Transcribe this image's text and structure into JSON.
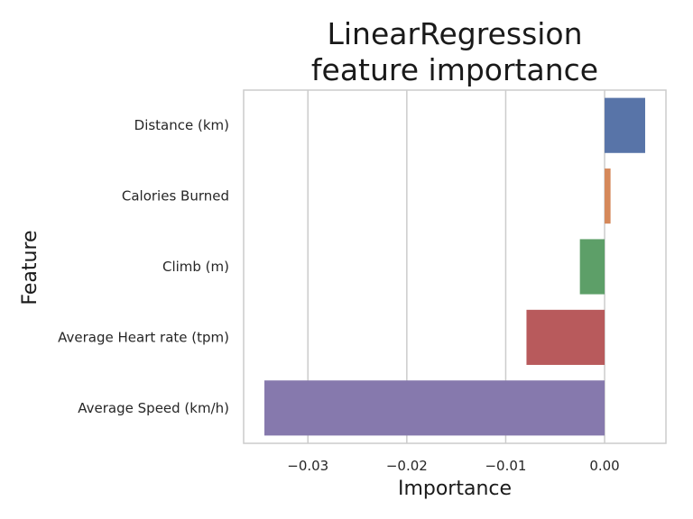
{
  "chart_data": {
    "type": "bar",
    "orientation": "horizontal",
    "title_lines": [
      "LinearRegression",
      "feature importance"
    ],
    "xlabel": "Importance",
    "ylabel": "Feature",
    "xlim": [
      -0.0365,
      0.0062
    ],
    "xticks": [
      -0.03,
      -0.02,
      -0.01,
      0.0
    ],
    "xtick_labels": [
      "−0.03",
      "−0.02",
      "−0.01",
      "0.00"
    ],
    "grid": "vertical",
    "categories": [
      "Distance (km)",
      "Calories Burned",
      "Climb (m)",
      "Average Heart rate (tpm)",
      "Average Speed (km/h)"
    ],
    "values": [
      0.0041,
      0.0006,
      -0.0025,
      -0.0079,
      -0.0344
    ],
    "colors": [
      "#5874a8",
      "#d5885a",
      "#5d9f68",
      "#b85a5c",
      "#8679ad"
    ]
  }
}
